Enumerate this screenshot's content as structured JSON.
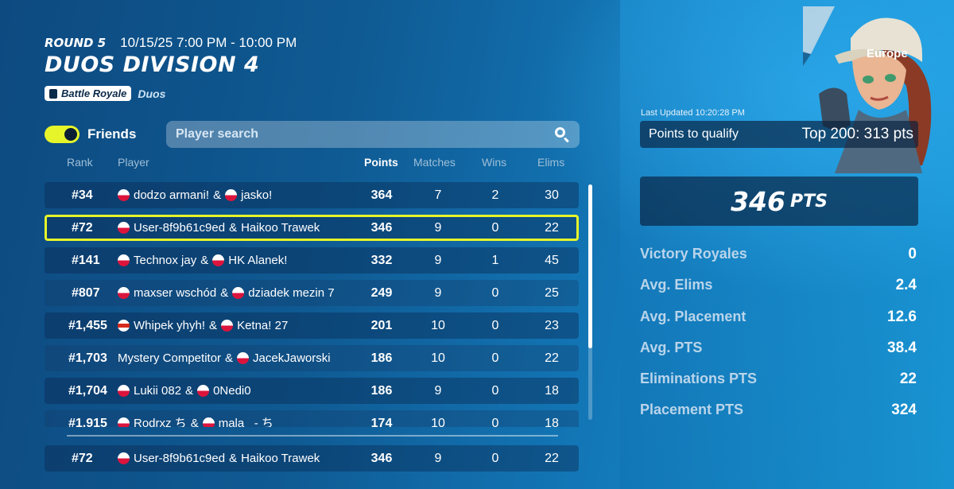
{
  "header": {
    "round": "ROUND 5",
    "time": "10/15/25 7:00 PM - 10:00 PM",
    "title": "DUOS DIVISION 4",
    "mode_badge": "Battle Royale",
    "mode_sub": "Duos"
  },
  "friends_toggle": {
    "label": "Friends",
    "on": true
  },
  "search": {
    "placeholder": "Player search"
  },
  "columns": {
    "rank": "Rank",
    "player": "Player",
    "points": "Points",
    "matches": "Matches",
    "wins": "Wins",
    "elims": "Elims"
  },
  "rows": [
    {
      "rank": "#34",
      "p1": "dodzo armani!",
      "p1_flag": "pl",
      "amp": "&",
      "p2": "jasko!",
      "p2_flag": "pl",
      "points": "364",
      "matches": "7",
      "wins": "2",
      "elims": "30"
    },
    {
      "rank": "#72",
      "p1": "User-8f9b61c9ed",
      "p1_flag": "pl",
      "amp": "&",
      "p2": "Haikoo Trawek",
      "p2_flag": "",
      "points": "346",
      "matches": "9",
      "wins": "0",
      "elims": "22",
      "highlight": true
    },
    {
      "rank": "#141",
      "p1": "Technox jay",
      "p1_flag": "pl",
      "amp": "&",
      "p2": "HK Alanek!",
      "p2_flag": "pl",
      "points": "332",
      "matches": "9",
      "wins": "1",
      "elims": "45"
    },
    {
      "rank": "#807",
      "p1": "maxser wschód",
      "p1_flag": "pl",
      "amp": "&",
      "p2": "dziadek mezin 7",
      "p2_flag": "pl",
      "points": "249",
      "matches": "9",
      "wins": "0",
      "elims": "25"
    },
    {
      "rank": "#1,455",
      "p1": "Whipek yhyh!",
      "p1_flag": "ru",
      "amp": "&",
      "p2": "Ketna! 27",
      "p2_flag": "pl",
      "points": "201",
      "matches": "10",
      "wins": "0",
      "elims": "23"
    },
    {
      "rank": "#1,703",
      "p1": "Mystery Competitor",
      "p1_flag": "",
      "amp": "&",
      "p2": "JacekJaworski",
      "p2_flag": "pl",
      "points": "186",
      "matches": "10",
      "wins": "0",
      "elims": "22"
    },
    {
      "rank": "#1,704",
      "p1": "Lukii 082",
      "p1_flag": "pl",
      "amp": "&",
      "p2": "0Nedi0",
      "p2_flag": "pl",
      "points": "186",
      "matches": "9",
      "wins": "0",
      "elims": "18"
    },
    {
      "rank": "#1,915",
      "p1": "Rodrxz ち",
      "p1_flag": "pl",
      "amp": "&",
      "p2": "mala_ - ち",
      "p2_flag": "pl",
      "points": "174",
      "matches": "10",
      "wins": "0",
      "elims": "18"
    }
  ],
  "pinned_row": {
    "rank": "#72",
    "p1": "User-8f9b61c9ed",
    "amp": "&",
    "p2": "Haikoo Trawek",
    "points": "346",
    "matches": "9",
    "wins": "0",
    "elims": "22"
  },
  "panel": {
    "region": "Europe",
    "last_updated": "Last Updated 10:20:28 PM",
    "qualify_label": "Points to qualify",
    "qualify_value": "Top 200: 313 pts",
    "pts_value": "346",
    "pts_unit": "PTS",
    "stats": [
      {
        "label": "Victory Royales",
        "value": "0"
      },
      {
        "label": "Avg. Elims",
        "value": "2.4"
      },
      {
        "label": "Avg. Placement",
        "value": "12.6"
      },
      {
        "label": "Avg. PTS",
        "value": "38.4"
      },
      {
        "label": "Eliminations PTS",
        "value": "22"
      },
      {
        "label": "Placement PTS",
        "value": "324"
      }
    ]
  },
  "colors": {
    "accent": "#e6f52a",
    "row_bg": "#0a2850",
    "flag_red": "#dc143c"
  },
  "icons": {
    "search": "search-icon",
    "mode": "bag-icon",
    "flag": "poland-flag-icon"
  }
}
